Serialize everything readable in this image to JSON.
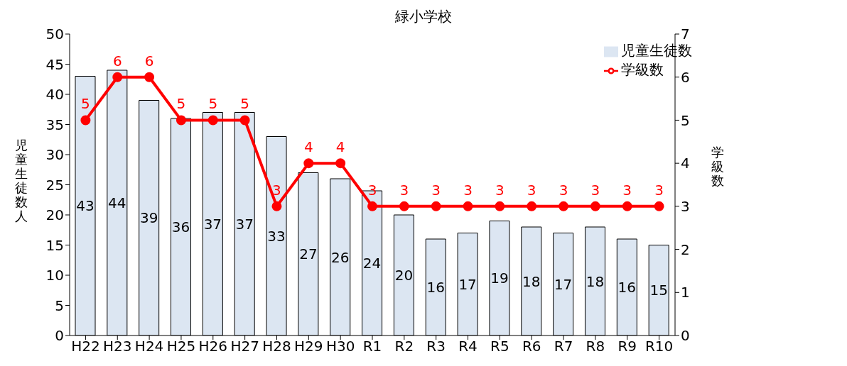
{
  "chart_data": {
    "type": "bar",
    "title": "緑小学校",
    "ylabel": "児童生徒数人",
    "y2label": "学級数",
    "categories": [
      "H22",
      "H23",
      "H24",
      "H25",
      "H26",
      "H27",
      "H28",
      "H29",
      "H30",
      "R1",
      "R2",
      "R3",
      "R4",
      "R5",
      "R6",
      "R7",
      "R8",
      "R9",
      "R10"
    ],
    "series": [
      {
        "name": "児童生徒数",
        "color": "#dce6f2",
        "values": [
          43,
          44,
          39,
          36,
          37,
          37,
          33,
          27,
          26,
          24,
          20,
          16,
          17,
          19,
          18,
          17,
          18,
          16,
          15
        ]
      },
      {
        "name": "学級数",
        "type": "line",
        "axis": "y2",
        "color": "#ff0000",
        "marker": "circle",
        "values": [
          5,
          6,
          6,
          5,
          5,
          5,
          3,
          4,
          4,
          3,
          3,
          3,
          3,
          3,
          3,
          3,
          3,
          3,
          3
        ]
      }
    ],
    "ylim": [
      0,
      50
    ],
    "yticks": [
      0,
      5,
      10,
      15,
      20,
      25,
      30,
      35,
      40,
      45,
      50
    ],
    "y2lim": [
      0,
      7
    ],
    "y2ticks": [
      0,
      1,
      2,
      3,
      4,
      5,
      6,
      7
    ],
    "data_labels": true,
    "legend": "top right",
    "grid": false
  }
}
